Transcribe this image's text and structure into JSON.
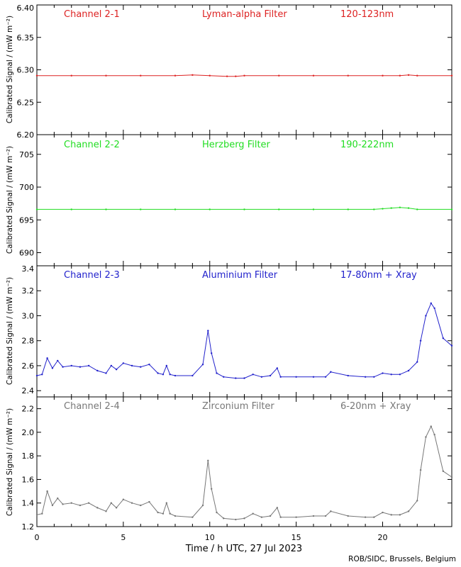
{
  "xlabel": "Time / h UTC, 27 Jul 2023",
  "credit": "ROB/SIDC, Brussels, Belgium",
  "xticks": [
    "0",
    "5",
    "10",
    "15",
    "20"
  ],
  "chart_data": [
    {
      "type": "line",
      "channel": "Channel 2-1",
      "filter": "Lyman-alpha Filter",
      "band": "120-123nm",
      "color": "#dd2222",
      "ylabel": "Calibrated Signal / (mW m⁻²)",
      "xlim": [
        0,
        24
      ],
      "ylim": [
        6.2,
        6.4
      ],
      "yticks": [
        "6.20",
        "6.25",
        "6.30",
        "6.35",
        "6.40"
      ],
      "x": [
        0,
        2,
        4,
        6,
        8,
        9,
        10,
        11,
        11.5,
        12,
        14,
        16,
        18,
        20,
        21,
        21.5,
        22,
        24
      ],
      "values": [
        6.291,
        6.291,
        6.291,
        6.291,
        6.291,
        6.292,
        6.291,
        6.29,
        6.29,
        6.291,
        6.291,
        6.291,
        6.291,
        6.291,
        6.291,
        6.292,
        6.291,
        6.291
      ]
    },
    {
      "type": "line",
      "channel": "Channel 2-2",
      "filter": "Herzberg Filter",
      "band": "190-222nm",
      "color": "#22dd22",
      "ylabel": "Calibrated Signal / (mW m⁻²)",
      "xlim": [
        0,
        24
      ],
      "ylim": [
        688,
        708
      ],
      "yticks": [
        "690",
        "695",
        "700",
        "705"
      ],
      "x": [
        0,
        2,
        4,
        6,
        8,
        10,
        12,
        14,
        16,
        18,
        19.5,
        20,
        20.5,
        21,
        21.5,
        22,
        24
      ],
      "values": [
        696.6,
        696.6,
        696.6,
        696.6,
        696.6,
        696.6,
        696.6,
        696.6,
        696.6,
        696.6,
        696.6,
        696.7,
        696.8,
        696.9,
        696.8,
        696.6,
        696.6
      ]
    },
    {
      "type": "line",
      "channel": "Channel 2-3",
      "filter": "Aluminium Filter",
      "band": "17-80nm + Xray",
      "color": "#2222cc",
      "ylabel": "Calibrated Signal / (mW m⁻²)",
      "xlim": [
        0,
        24
      ],
      "ylim": [
        2.35,
        3.4
      ],
      "yticks": [
        "2.4",
        "2.6",
        "2.8",
        "3.0",
        "3.2",
        "3.4"
      ],
      "x": [
        0,
        0.3,
        0.6,
        0.9,
        1.2,
        1.5,
        2,
        2.5,
        3,
        3.5,
        4,
        4.3,
        4.6,
        5,
        5.5,
        6,
        6.5,
        7,
        7.3,
        7.5,
        7.7,
        8,
        9,
        9.6,
        9.9,
        10.1,
        10.4,
        10.8,
        11.5,
        12,
        12.5,
        13,
        13.5,
        13.9,
        14.1,
        15,
        16,
        16.7,
        17,
        18,
        19,
        19.5,
        20,
        20.5,
        21,
        21.5,
        22,
        22.2,
        22.5,
        22.8,
        23,
        23.5,
        24
      ],
      "values": [
        2.52,
        2.53,
        2.66,
        2.58,
        2.64,
        2.59,
        2.6,
        2.59,
        2.6,
        2.56,
        2.54,
        2.6,
        2.57,
        2.62,
        2.6,
        2.59,
        2.61,
        2.54,
        2.53,
        2.6,
        2.53,
        2.52,
        2.52,
        2.61,
        2.88,
        2.7,
        2.54,
        2.51,
        2.5,
        2.5,
        2.53,
        2.51,
        2.52,
        2.58,
        2.51,
        2.51,
        2.51,
        2.51,
        2.55,
        2.52,
        2.51,
        2.51,
        2.54,
        2.53,
        2.53,
        2.56,
        2.63,
        2.8,
        3.0,
        3.1,
        3.06,
        2.82,
        2.76
      ]
    },
    {
      "type": "line",
      "channel": "Channel 2-4",
      "filter": "Zirconium Filter",
      "band": "6-20nm + Xray",
      "color": "#777777",
      "ylabel": "Calibrated Signal / (mW m⁻²)",
      "xlim": [
        0,
        24
      ],
      "ylim": [
        1.2,
        2.3
      ],
      "yticks": [
        "1.2",
        "1.4",
        "1.6",
        "1.8",
        "2.0",
        "2.2"
      ],
      "x": [
        0,
        0.3,
        0.6,
        0.9,
        1.2,
        1.5,
        2,
        2.5,
        3,
        3.5,
        4,
        4.3,
        4.6,
        5,
        5.5,
        6,
        6.5,
        7,
        7.3,
        7.5,
        7.7,
        8,
        9,
        9.6,
        9.9,
        10.1,
        10.4,
        10.8,
        11.5,
        12,
        12.5,
        13,
        13.5,
        13.9,
        14.1,
        15,
        16,
        16.7,
        17,
        18,
        19,
        19.5,
        20,
        20.5,
        21,
        21.5,
        22,
        22.2,
        22.5,
        22.8,
        23,
        23.5,
        24
      ],
      "values": [
        1.3,
        1.31,
        1.5,
        1.38,
        1.44,
        1.39,
        1.4,
        1.38,
        1.4,
        1.36,
        1.33,
        1.4,
        1.36,
        1.43,
        1.4,
        1.38,
        1.41,
        1.32,
        1.31,
        1.4,
        1.31,
        1.29,
        1.28,
        1.38,
        1.76,
        1.52,
        1.32,
        1.27,
        1.26,
        1.27,
        1.31,
        1.28,
        1.29,
        1.36,
        1.28,
        1.28,
        1.29,
        1.29,
        1.33,
        1.29,
        1.28,
        1.28,
        1.32,
        1.3,
        1.3,
        1.33,
        1.42,
        1.68,
        1.96,
        2.05,
        1.98,
        1.67,
        1.62
      ]
    }
  ]
}
